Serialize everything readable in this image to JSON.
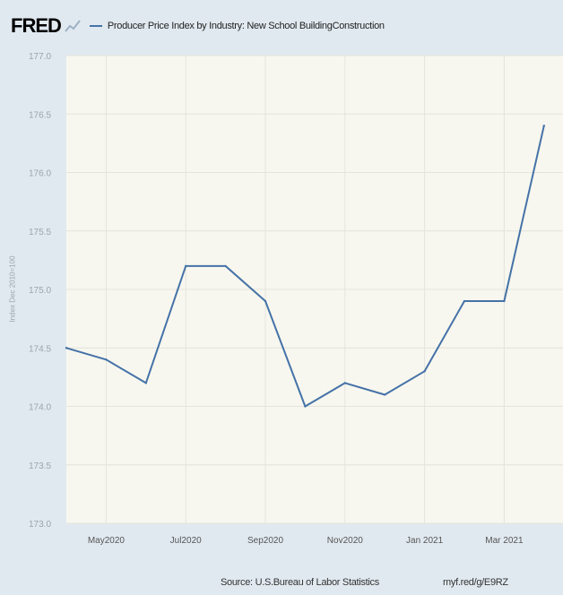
{
  "header": {
    "logo": "FRED",
    "logo_icon": "chart-line-icon",
    "series_legend": "Producer Price Index by Industry: New School BuildingConstruction"
  },
  "footer": {
    "source": "Source: U.S.Bureau of Labor Statistics",
    "shortlink": "myf.red/g/E9RZ"
  },
  "colors": {
    "line": "#4572a7",
    "plot_bg": "#f7f7ef",
    "frame_bg": "#e1e9f0"
  },
  "chart_data": {
    "type": "line",
    "title": "",
    "xlabel": "",
    "ylabel": "Index Dec 2010=100",
    "ylim": [
      173.0,
      177.0
    ],
    "yticks": [
      "177.0",
      "176.5",
      "176.0",
      "175.5",
      "175.0",
      "174.5",
      "174.0",
      "173.5",
      "173.0"
    ],
    "xticks": [
      "May2020",
      "Jul2020",
      "Sep2020",
      "Nov2020",
      "Jan 2021",
      "Mar 2021"
    ],
    "grid": true,
    "legend": "top",
    "series": [
      {
        "name": "Producer Price Index by Industry: New School BuildingConstruction",
        "x": [
          "2020-04",
          "2020-05",
          "2020-06",
          "2020-07",
          "2020-08",
          "2020-09",
          "2020-10",
          "2020-11",
          "2020-12",
          "2021-01",
          "2021-02",
          "2021-03",
          "2021-04"
        ],
        "values": [
          174.5,
          174.4,
          174.2,
          175.2,
          175.2,
          174.9,
          174.0,
          174.2,
          174.1,
          174.3,
          174.9,
          174.9,
          176.4
        ]
      }
    ]
  }
}
